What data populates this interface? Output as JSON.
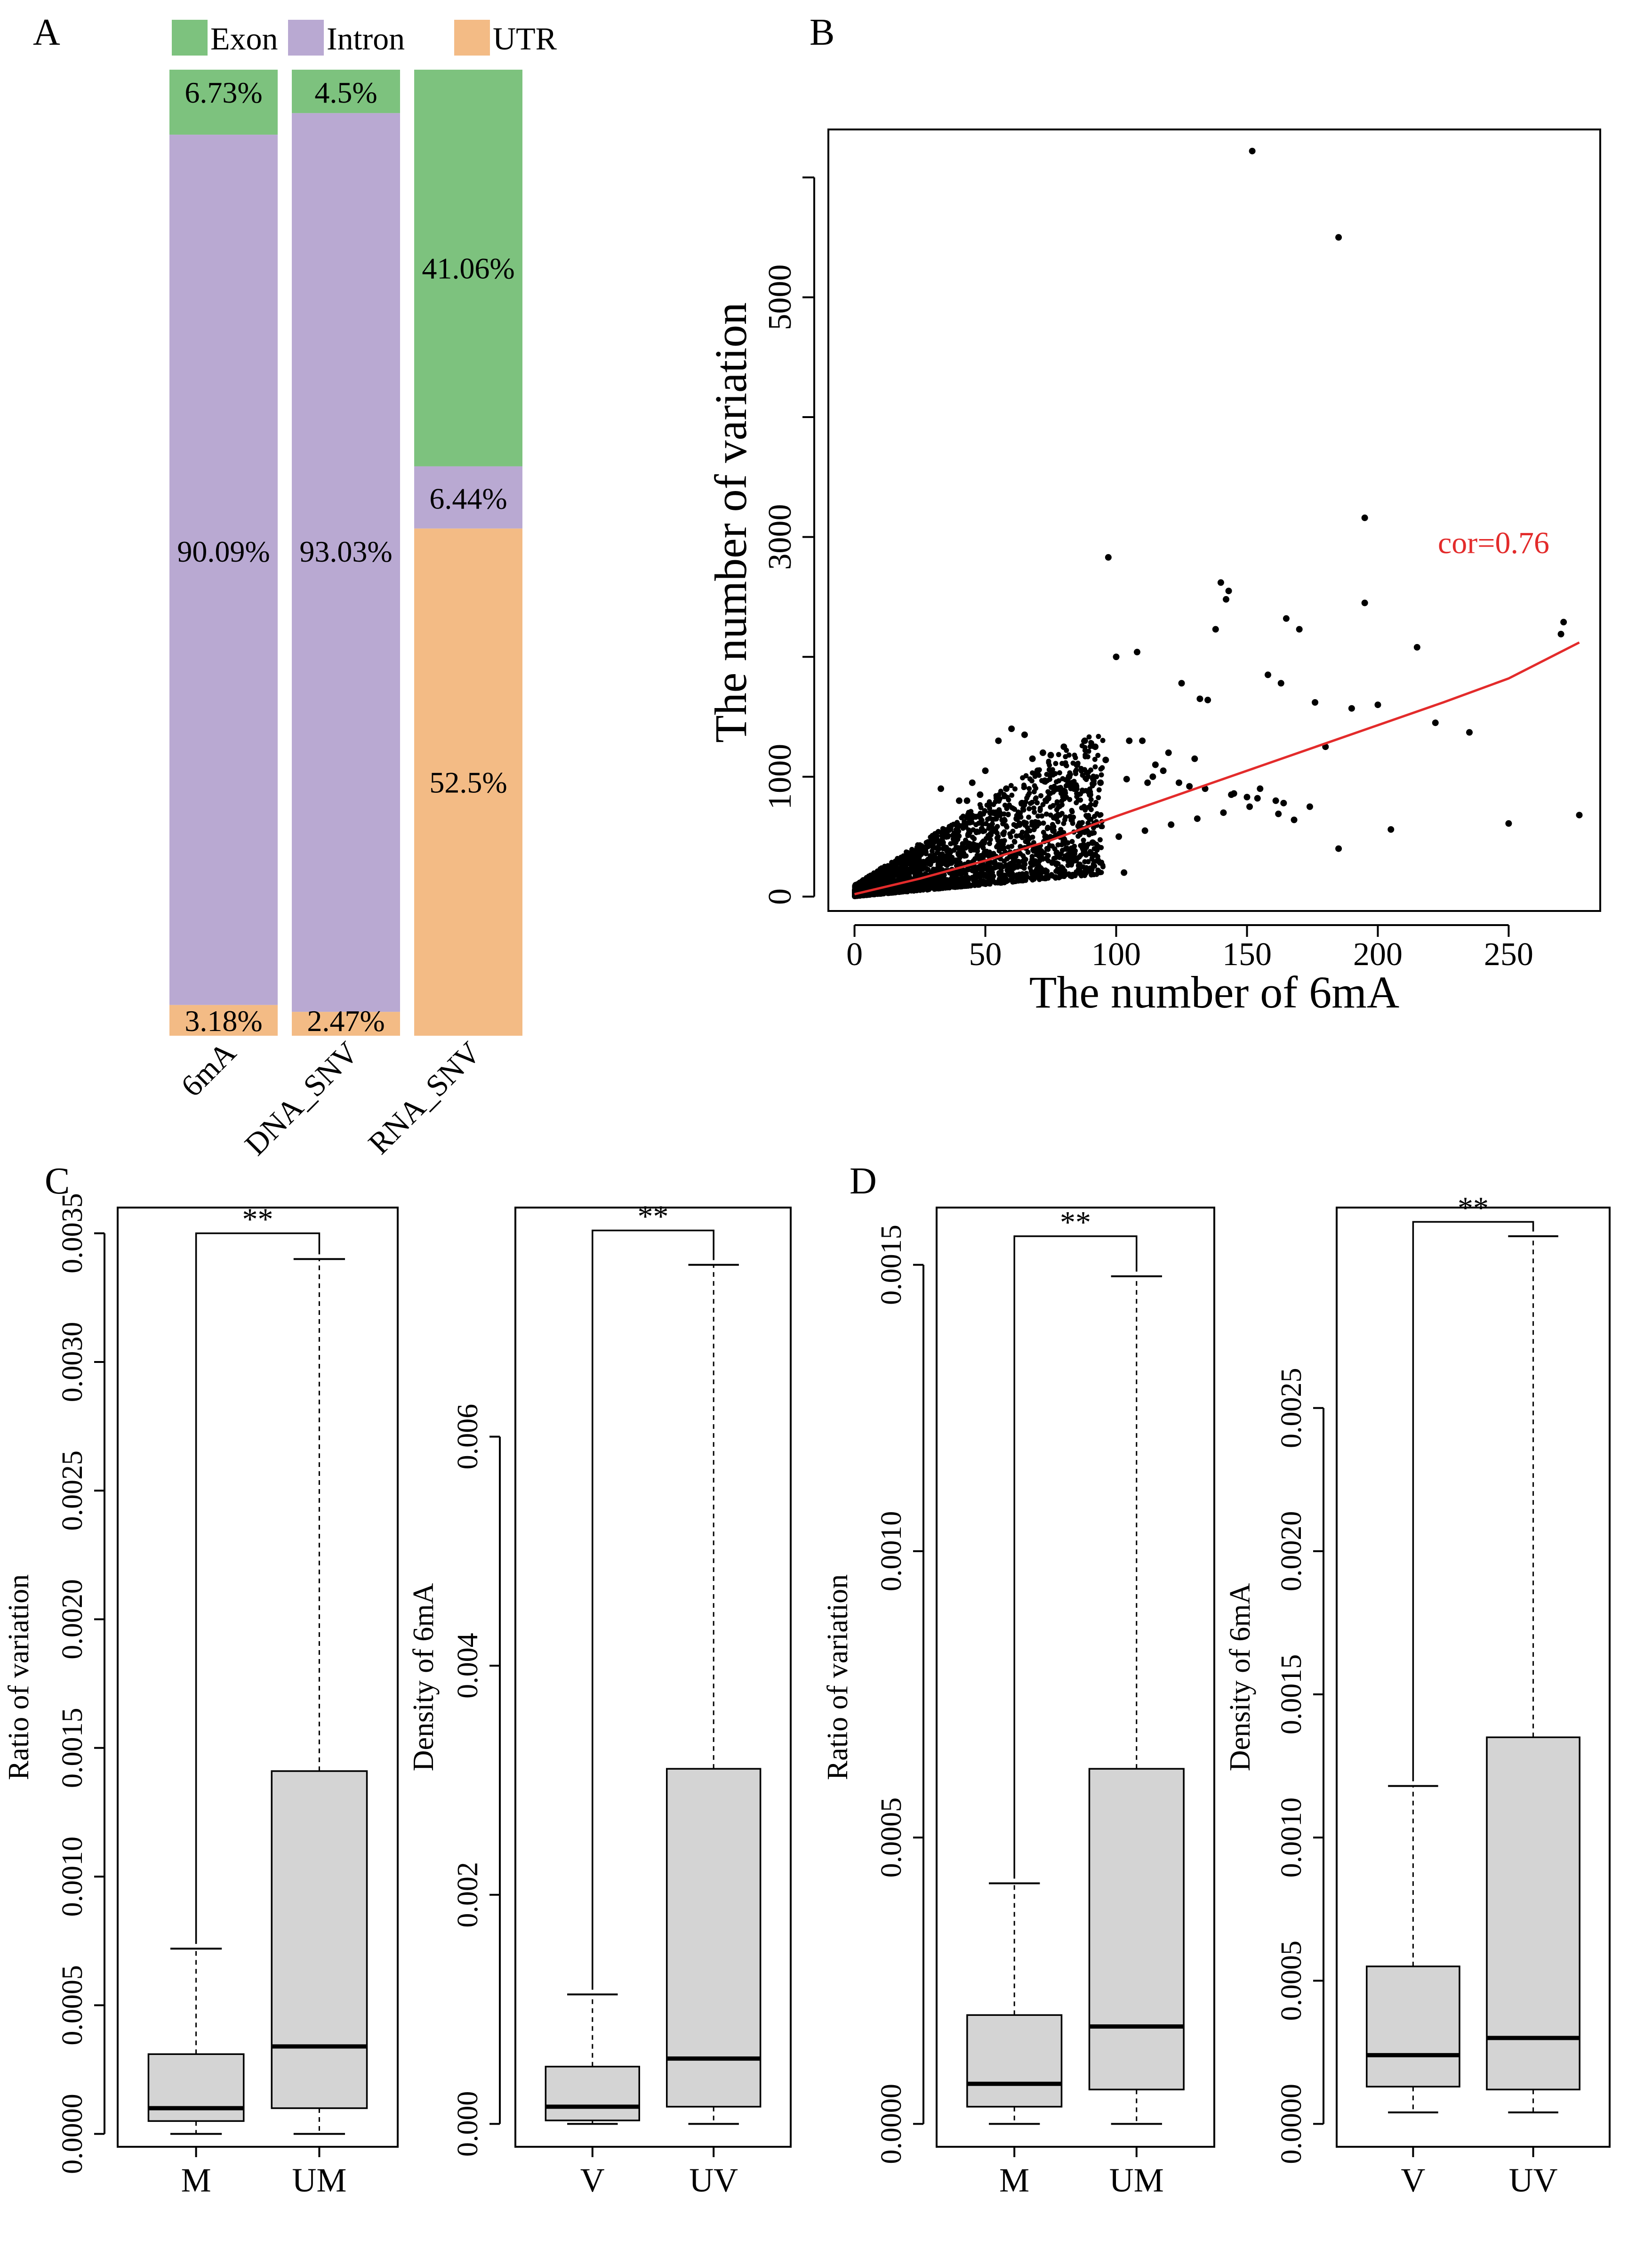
{
  "colors": {
    "exon": "#7dc27e",
    "intron": "#b9a9d2",
    "utr": "#f3bb85",
    "box_fill": "#d4d4d4",
    "fit_line": "#e32b2b",
    "ink": "#000000"
  },
  "chart_data": [
    {
      "panel": "A",
      "type": "bar",
      "stacked": true,
      "legend": [
        "Exon",
        "Intron",
        "UTR"
      ],
      "categories": [
        "6mA",
        "DNA_SNV",
        "RNA_SNV"
      ],
      "series": [
        {
          "name": "Exon",
          "values": [
            6.73,
            4.5,
            41.06
          ],
          "labels": [
            "6.73%",
            "4.5%",
            "41.06%"
          ]
        },
        {
          "name": "Intron",
          "values": [
            90.09,
            93.03,
            6.44
          ],
          "labels": [
            "90.09%",
            "93.03%",
            "6.44%"
          ]
        },
        {
          "name": "UTR",
          "values": [
            3.18,
            2.47,
            52.5
          ],
          "labels": [
            "3.18%",
            "2.47%",
            "52.5%"
          ]
        }
      ]
    },
    {
      "panel": "B",
      "type": "scatter",
      "xlabel": "The number of 6mA",
      "ylabel": "The number of variation",
      "xlim": [
        -10,
        285
      ],
      "ylim": [
        -120,
        6400
      ],
      "xticks": [
        "0",
        "50",
        "100",
        "150",
        "200",
        "250"
      ],
      "xtick_values": [
        0,
        50,
        100,
        150,
        200,
        250
      ],
      "yticks": [
        "0",
        "1000",
        "3000",
        "5000"
      ],
      "ytick_values": [
        0,
        1000,
        3000,
        5000
      ],
      "annotation": "cor=0.76",
      "correlation": 0.76,
      "fit_line": {
        "x": [
          0,
          25,
          50,
          75,
          100,
          125,
          150,
          175,
          200,
          225,
          250,
          277
        ],
        "y": [
          20,
          150,
          300,
          470,
          670,
          860,
          1050,
          1240,
          1430,
          1620,
          1820,
          2120
        ]
      },
      "points": {
        "x": [
          152,
          185,
          195,
          97,
          140,
          143,
          142,
          138,
          195,
          165,
          170,
          100,
          108,
          271,
          270,
          215,
          125,
          132,
          135,
          158,
          163,
          176,
          190,
          200,
          222,
          235,
          180,
          250,
          277,
          162,
          168,
          185,
          205,
          145,
          150,
          155,
          120,
          88,
          92,
          96,
          110,
          130,
          118,
          112,
          105,
          115,
          128,
          85,
          80,
          75,
          70,
          78,
          90,
          82,
          60,
          65,
          55,
          68,
          72,
          50,
          45,
          58,
          48,
          40,
          52,
          62,
          42,
          35,
          38,
          30,
          32,
          25,
          28,
          20,
          22,
          15,
          18,
          10,
          12,
          8,
          5,
          3,
          6,
          14,
          24,
          34,
          44,
          54,
          64,
          74,
          84,
          94,
          104,
          114,
          124,
          134,
          144,
          154,
          164,
          174,
          36,
          46,
          56,
          66,
          76,
          86,
          16,
          26,
          11,
          21,
          31,
          41,
          51,
          61,
          71,
          81,
          91,
          101,
          111,
          121,
          131,
          141,
          151,
          161,
          33,
          43,
          53,
          63,
          73,
          83,
          93,
          103
        ],
        "y": [
          6220,
          5500,
          3160,
          2830,
          2620,
          2550,
          2480,
          2230,
          2450,
          2320,
          2230,
          2000,
          2040,
          2290,
          2190,
          2080,
          1780,
          1650,
          1640,
          1850,
          1780,
          1620,
          1570,
          1600,
          1450,
          1370,
          1250,
          610,
          680,
          690,
          640,
          400,
          560,
          860,
          830,
          900,
          1200,
          1300,
          1250,
          1140,
          1300,
          1150,
          1050,
          950,
          1300,
          1100,
          920,
          1100,
          1250,
          1180,
          1050,
          900,
          850,
          1000,
          1400,
          1350,
          1300,
          1150,
          1200,
          1050,
          950,
          900,
          850,
          800,
          700,
          650,
          600,
          550,
          480,
          450,
          400,
          380,
          300,
          280,
          250,
          200,
          180,
          150,
          120,
          100,
          80,
          50,
          40,
          200,
          350,
          500,
          620,
          700,
          780,
          820,
          900,
          950,
          980,
          1000,
          950,
          900,
          850,
          820,
          780,
          750,
          300,
          400,
          450,
          500,
          550,
          600,
          100,
          150,
          60,
          120,
          180,
          220,
          260,
          300,
          350,
          400,
          450,
          500,
          550,
          600,
          650,
          700,
          750,
          800,
          900,
          800,
          700,
          600,
          500,
          400,
          300,
          200
        ]
      },
      "dense_cloud_note": "thousands of overlapping points near origin"
    },
    {
      "panel": "C",
      "subplot": 1,
      "type": "box",
      "ylabel": "Ratio of variation",
      "ylim": [
        -5e-05,
        0.0036
      ],
      "yticks": [
        "0.0000",
        "0.0005",
        "0.0010",
        "0.0015",
        "0.0020",
        "0.0025",
        "0.0030",
        "0.0035"
      ],
      "ytick_values": [
        0,
        0.0005,
        0.001,
        0.0015,
        0.002,
        0.0025,
        0.003,
        0.0035
      ],
      "categories": [
        "M",
        "UM"
      ],
      "boxes": [
        {
          "min": 0.0,
          "q1": 5e-05,
          "median": 0.0001,
          "q3": 0.00031,
          "max": 0.00072
        },
        {
          "min": 0.0,
          "q1": 0.0001,
          "median": 0.00034,
          "q3": 0.00141,
          "max": 0.0034
        }
      ],
      "significance": "**",
      "sig_level": 0.0035
    },
    {
      "panel": "C",
      "subplot": 2,
      "type": "box",
      "ylabel": "Density of 6mA",
      "ylim": [
        -0.0002,
        0.008
      ],
      "yticks": [
        "0.000",
        "0.002",
        "0.004",
        "0.006"
      ],
      "ytick_values": [
        0,
        0.002,
        0.004,
        0.006
      ],
      "categories": [
        "V",
        "UV"
      ],
      "boxes": [
        {
          "min": 0.0,
          "q1": 3e-05,
          "median": 0.00015,
          "q3": 0.0005,
          "max": 0.00113
        },
        {
          "min": 0.0,
          "q1": 0.00015,
          "median": 0.00057,
          "q3": 0.0031,
          "max": 0.0075
        }
      ],
      "significance": "**",
      "sig_level": 0.0078
    },
    {
      "panel": "D",
      "subplot": 1,
      "type": "box",
      "ylabel": "Ratio of variation",
      "ylim": [
        -4e-05,
        0.0016
      ],
      "yticks": [
        "0.0000",
        "0.0005",
        "0.0010",
        "0.0015"
      ],
      "ytick_values": [
        0,
        0.0005,
        0.001,
        0.0015
      ],
      "categories": [
        "M",
        "UM"
      ],
      "boxes": [
        {
          "min": 0.0,
          "q1": 3e-05,
          "median": 7e-05,
          "q3": 0.00019,
          "max": 0.00042
        },
        {
          "min": 0.0,
          "q1": 6e-05,
          "median": 0.00017,
          "q3": 0.00062,
          "max": 0.00148
        }
      ],
      "significance": "**",
      "sig_level": 0.00155
    },
    {
      "panel": "D",
      "subplot": 2,
      "type": "box",
      "ylabel": "Density of 6mA",
      "ylim": [
        -8e-05,
        0.0032
      ],
      "yticks": [
        "0.0000",
        "0.0005",
        "0.0010",
        "0.0015",
        "0.0020",
        "0.0025"
      ],
      "ytick_values": [
        0,
        0.0005,
        0.001,
        0.0015,
        0.002,
        0.0025
      ],
      "categories": [
        "V",
        "UV"
      ],
      "boxes": [
        {
          "min": 4e-05,
          "q1": 0.00013,
          "median": 0.00024,
          "q3": 0.00055,
          "max": 0.00118
        },
        {
          "min": 4e-05,
          "q1": 0.00012,
          "median": 0.0003,
          "q3": 0.00135,
          "max": 0.0031
        }
      ],
      "significance": "**",
      "sig_level": 0.00315
    }
  ],
  "panel_labels": [
    "A",
    "B",
    "C",
    "D"
  ]
}
